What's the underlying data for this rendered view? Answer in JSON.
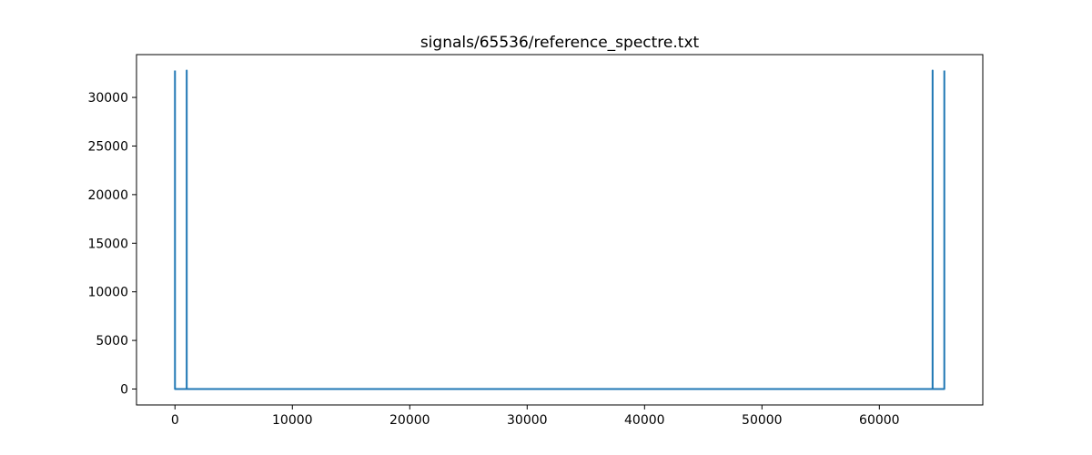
{
  "chart_data": {
    "type": "line",
    "title": "signals/65536/reference_spectre.txt",
    "xlabel": "",
    "ylabel": "",
    "xlim": [
      -3277,
      68812
    ],
    "ylim": [
      -1638,
      34406
    ],
    "x_ticks": [
      0,
      10000,
      20000,
      30000,
      40000,
      50000,
      60000
    ],
    "x_tick_labels": [
      "0",
      "10000",
      "20000",
      "30000",
      "40000",
      "50000",
      "60000"
    ],
    "y_ticks": [
      0,
      5000,
      10000,
      15000,
      20000,
      25000,
      30000
    ],
    "y_tick_labels": [
      "0",
      "5000",
      "10000",
      "15000",
      "20000",
      "25000",
      "30000"
    ],
    "grid": false,
    "series": [
      {
        "color": "#1f77b4",
        "x": [
          0,
          1,
          999,
          1000,
          1001,
          64535,
          64536,
          64537,
          65534,
          65535
        ],
        "y": [
          32768,
          0,
          0,
          32768,
          0,
          0,
          32768,
          0,
          0,
          32768
        ]
      }
    ]
  }
}
